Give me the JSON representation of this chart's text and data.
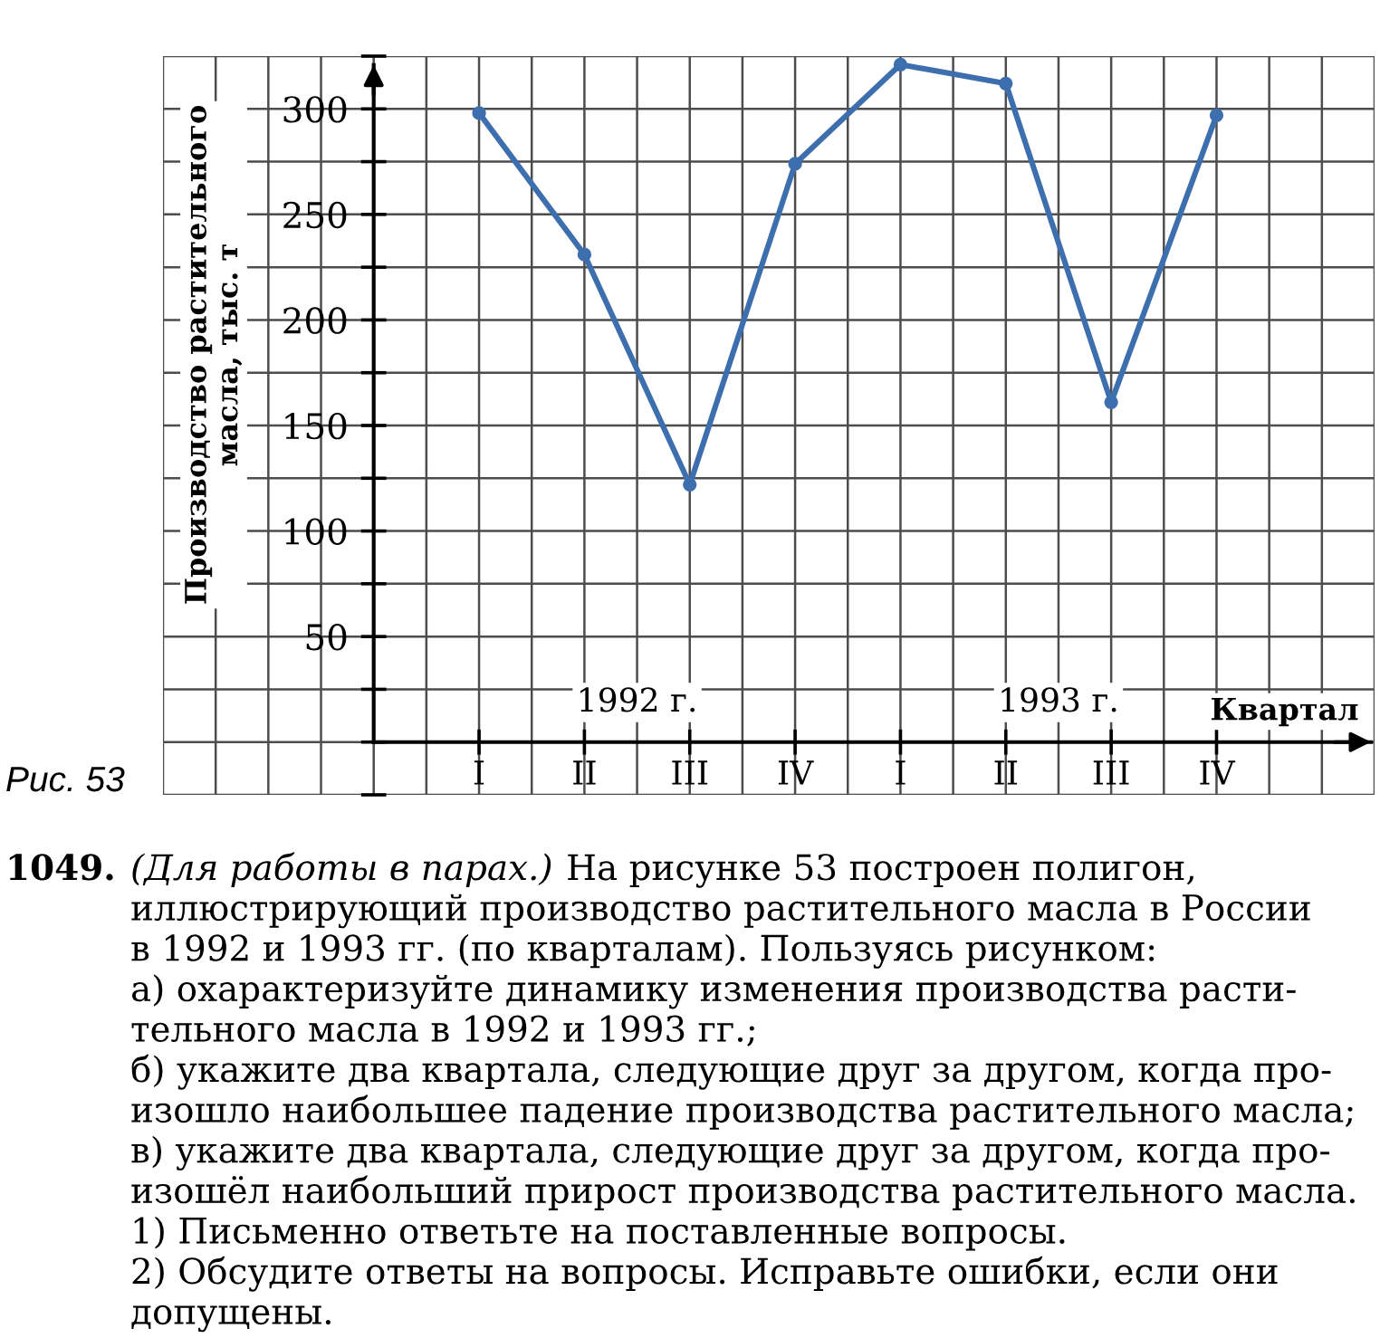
{
  "chart_data": {
    "type": "line",
    "categories": [
      "I",
      "II",
      "III",
      "IV",
      "I",
      "II",
      "III",
      "IV"
    ],
    "values": [
      298,
      231,
      122,
      274,
      321,
      312,
      161,
      297
    ],
    "color": "#3d6fae",
    "marker": "circle",
    "line_style": "solid",
    "xlabel": "Квартал",
    "ylabel": "Производство растительного\nмасла, тыс. т",
    "ylim": [
      -25,
      325
    ],
    "yticks": [
      {
        "value": -25,
        "label": null
      },
      {
        "value": 0,
        "label": null
      },
      {
        "value": 25,
        "label": null
      },
      50,
      {
        "value": 75,
        "label": null
      },
      100,
      {
        "value": 125,
        "label": null
      },
      150,
      {
        "value": 175,
        "label": null
      },
      200,
      {
        "value": 225,
        "label": null
      },
      250,
      {
        "value": 275,
        "label": null
      },
      300,
      {
        "value": 325,
        "label": null
      }
    ],
    "grid": true,
    "annotations": [
      "1992 г.",
      "1993 г.",
      "Рис. 53",
      "1049.",
      "(Для работы в парах.)",
      "На рисунке 53 построен полигон,",
      "иллюстрирующий производство растительного масла в России\nв 1992 и 1993 гг. (по кварталам). Пользуясь рисунком:",
      "а) охарактеризуйте динамику изменения производства расти-\nтельного масла в 1992 и 1993 гг.;",
      "б) укажите два квартала, следующие друг за другом, когда про-\nизошло наибольшее падение производства растительного масла;",
      "в) укажите два квартала, следующие друг за другом, когда про-\nизошёл наибольший прирост производства растительного масла.",
      "1) Письменно ответьте на поставленные вопросы.",
      "2) Обсудите ответы на вопросы. Исправьте ошибки, если они\nдопущены."
    ]
  }
}
